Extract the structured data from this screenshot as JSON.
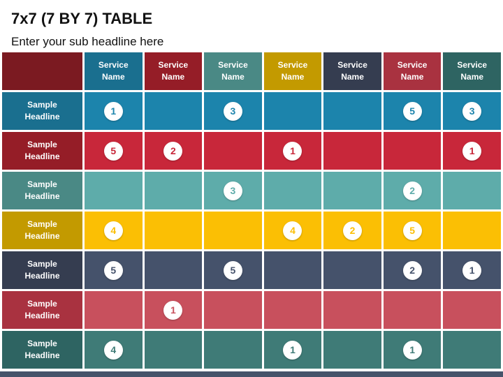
{
  "title": "7x7 (7 BY 7) TABLE",
  "subtitle": "Enter your sub headline here",
  "corner_color": "#7b1a21",
  "footer_color": "#46536a",
  "columns": [
    {
      "label": "Service Name",
      "color": "#1a6f8f"
    },
    {
      "label": "Service Name",
      "color": "#951d27"
    },
    {
      "label": "Service Name",
      "color": "#4a8985"
    },
    {
      "label": "Service Name",
      "color": "#c39a00"
    },
    {
      "label": "Service Name",
      "color": "#353d50"
    },
    {
      "label": "Service Name",
      "color": "#a93240"
    },
    {
      "label": "Service Name",
      "color": "#2e6462"
    }
  ],
  "rows": [
    {
      "label": "Sample Headline",
      "header_color": "#1a6f8f",
      "body_color": "#1c84ac",
      "number_color": "#1c84ac",
      "values": [
        1,
        null,
        3,
        null,
        null,
        5,
        3
      ]
    },
    {
      "label": "Sample Headline",
      "header_color": "#951d27",
      "body_color": "#c8273a",
      "number_color": "#c8273a",
      "values": [
        5,
        2,
        null,
        1,
        null,
        null,
        1
      ]
    },
    {
      "label": "Sample Headline",
      "header_color": "#4a8985",
      "body_color": "#5eacaa",
      "number_color": "#5eacaa",
      "values": [
        null,
        null,
        3,
        null,
        null,
        2,
        null
      ]
    },
    {
      "label": "Sample Headline",
      "header_color": "#c39a00",
      "body_color": "#fbbf04",
      "number_color": "#fbbf04",
      "values": [
        4,
        null,
        null,
        4,
        2,
        5,
        null
      ]
    },
    {
      "label": "Sample Headline",
      "header_color": "#353d50",
      "body_color": "#45526b",
      "number_color": "#45526b",
      "values": [
        5,
        null,
        5,
        null,
        null,
        2,
        1
      ]
    },
    {
      "label": "Sample Headline",
      "header_color": "#a93240",
      "body_color": "#c8505d",
      "number_color": "#c8505d",
      "values": [
        null,
        1,
        null,
        null,
        null,
        null,
        null
      ]
    },
    {
      "label": "Sample Headline",
      "header_color": "#2e6462",
      "body_color": "#3f7b77",
      "number_color": "#3f7b77",
      "values": [
        4,
        null,
        null,
        1,
        null,
        1,
        null
      ]
    }
  ]
}
